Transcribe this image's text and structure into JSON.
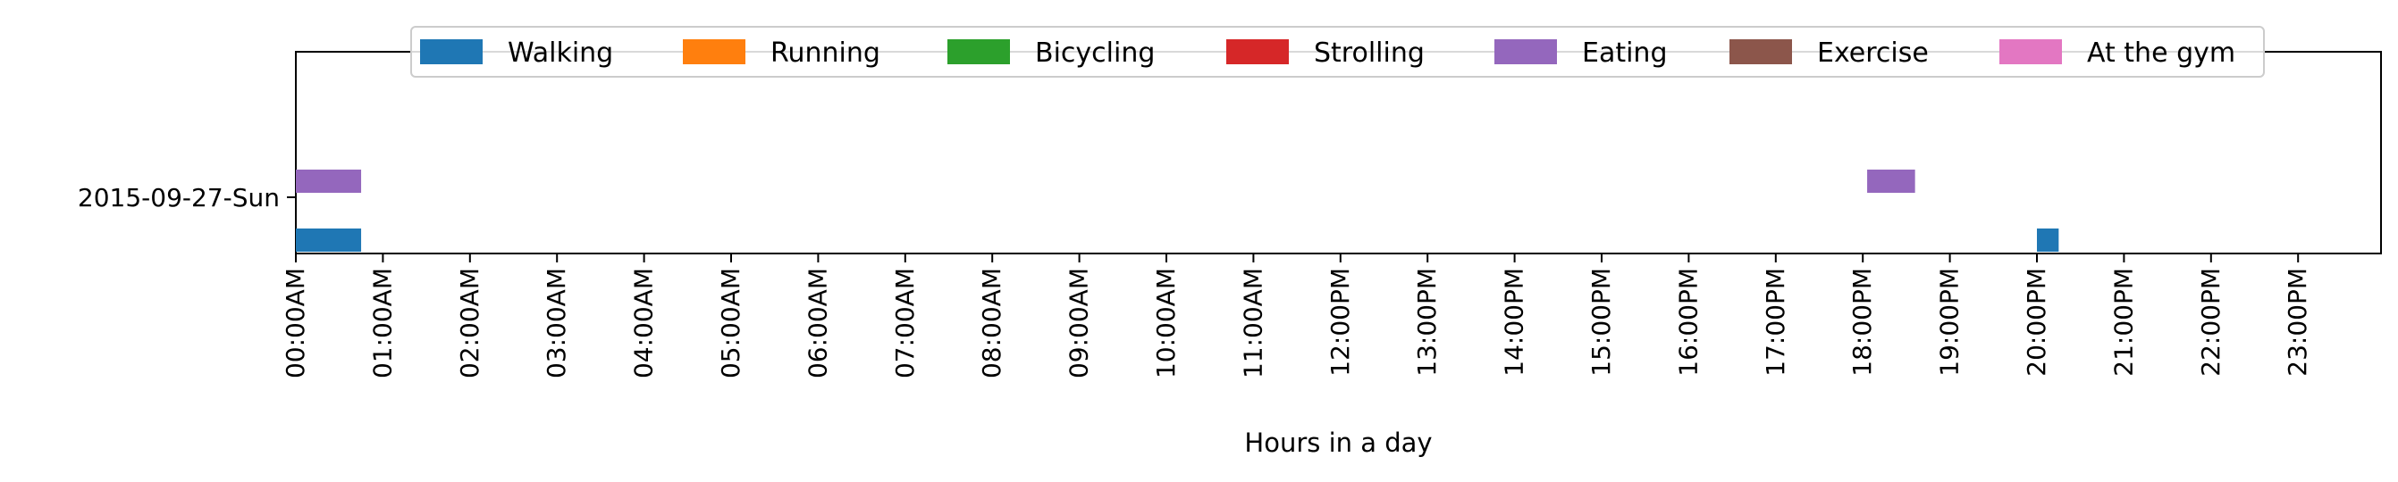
{
  "chart_data": {
    "type": "timeline",
    "title": "",
    "xlabel": "Hours in a day",
    "ylabel": "",
    "xlim": [
      0,
      24
    ],
    "x_ticks": [
      "00:00AM",
      "01:00AM",
      "02:00AM",
      "03:00AM",
      "04:00AM",
      "05:00AM",
      "06:00AM",
      "07:00AM",
      "08:00AM",
      "09:00AM",
      "10:00AM",
      "11:00AM",
      "12:00PM",
      "13:00PM",
      "14:00PM",
      "15:00PM",
      "16:00PM",
      "17:00PM",
      "18:00PM",
      "19:00PM",
      "20:00PM",
      "21:00PM",
      "22:00PM",
      "23:00PM"
    ],
    "y_ticks": [
      "2015-09-27-Sun"
    ],
    "grid": false,
    "legend_position": "top-center",
    "legend": [
      {
        "name": "Walking",
        "color": "#1f77b4"
      },
      {
        "name": "Running",
        "color": "#ff7f0e"
      },
      {
        "name": "Bicycling",
        "color": "#2ca02c"
      },
      {
        "name": "Strolling",
        "color": "#d62728"
      },
      {
        "name": "Eating",
        "color": "#9467bd"
      },
      {
        "name": "Exercise",
        "color": "#8c564b"
      },
      {
        "name": "At the gym",
        "color": "#e377c2"
      }
    ],
    "segments": [
      {
        "activity": "Eating",
        "day": "2015-09-27-Sun",
        "start": 0.0,
        "end": 0.75
      },
      {
        "activity": "Eating",
        "day": "2015-09-27-Sun",
        "start": 18.05,
        "end": 18.6
      },
      {
        "activity": "Walking",
        "day": "2015-09-27-Sun",
        "start": 0.0,
        "end": 0.75
      },
      {
        "activity": "Walking",
        "day": "2015-09-27-Sun",
        "start": 20.0,
        "end": 20.25
      }
    ]
  }
}
